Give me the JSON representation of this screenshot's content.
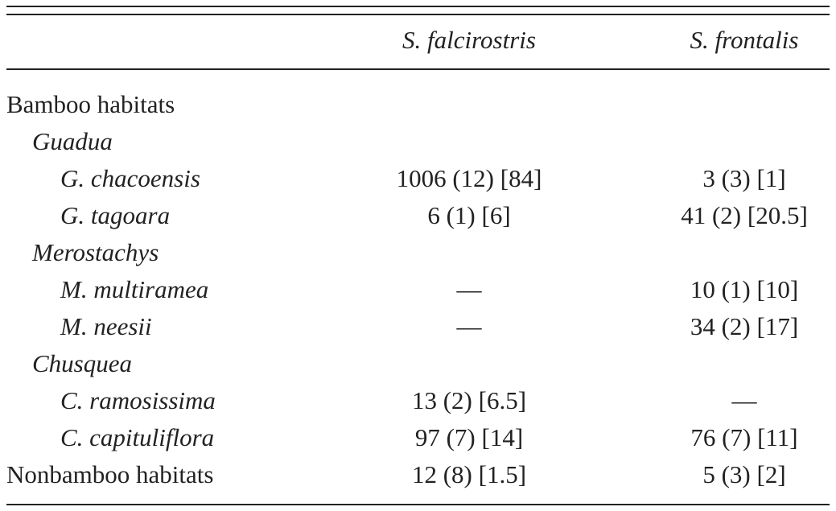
{
  "table": {
    "columns": [
      "S. falcirostris",
      "S. frontalis"
    ],
    "rows": [
      {
        "label": "Bamboo habitats"
      },
      {
        "label": "Guadua"
      },
      {
        "label": "G. chacoensis",
        "cells": [
          "1006 (12) [84]",
          "3 (3) [1]"
        ]
      },
      {
        "label": "G. tagoara",
        "cells": [
          "6 (1) [6]",
          "41 (2) [20.5]"
        ]
      },
      {
        "label": "Merostachys"
      },
      {
        "label": "M. multiramea",
        "cells": [
          "—",
          "10 (1) [10]"
        ]
      },
      {
        "label": "M. neesii",
        "cells": [
          "—",
          "34 (2) [17]"
        ]
      },
      {
        "label": "Chusquea"
      },
      {
        "label": "C. ramosissima",
        "cells": [
          "13 (2) [6.5]",
          "—"
        ]
      },
      {
        "label": "C. capituliflora",
        "cells": [
          "97 (7) [14]",
          "76 (7) [11]"
        ]
      },
      {
        "label": "Nonbamboo habitats",
        "cells": [
          "12 (8) [1.5]",
          "5 (3) [2]"
        ]
      }
    ]
  }
}
